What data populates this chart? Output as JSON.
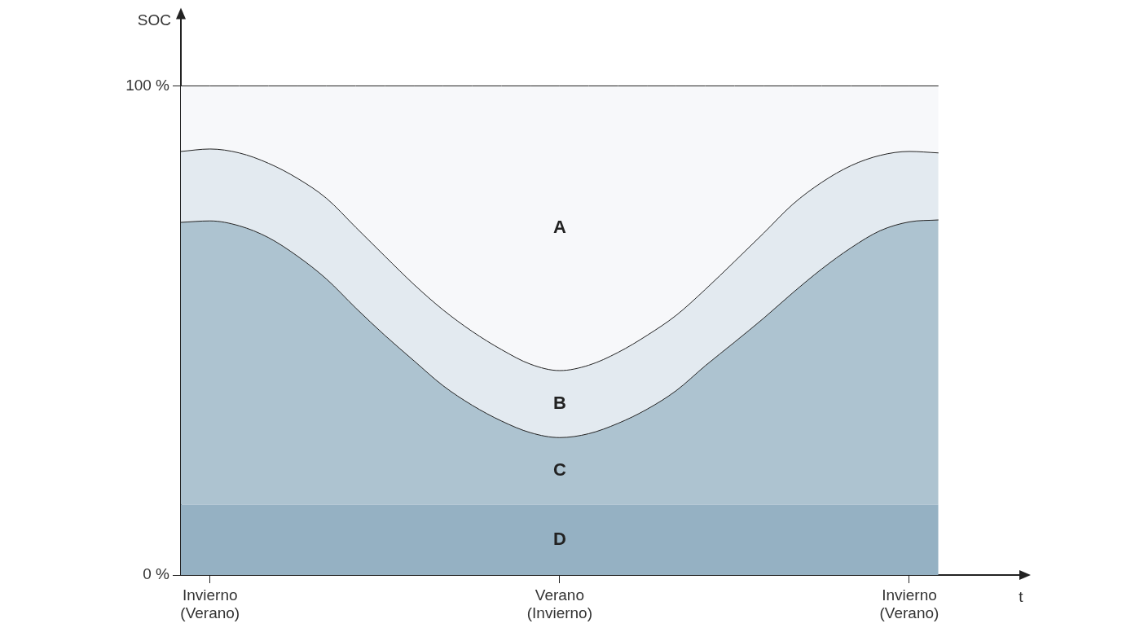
{
  "chart_data": {
    "type": "area",
    "stacked": true,
    "xlabel": "t",
    "ylabel": "SOC",
    "categories": [
      null,
      "Invierno\n(Verano)",
      null,
      null,
      null,
      null,
      null,
      null,
      null,
      null,
      null,
      null,
      null,
      "Verano\n(Invierno)",
      null,
      null,
      null,
      null,
      null,
      null,
      null,
      null,
      null,
      null,
      null,
      "Invierno\n(Verano)",
      null,
      null,
      null,
      null
    ],
    "ylim": [
      0,
      115
    ],
    "yticks": [
      {
        "value": 0,
        "label": "0 %"
      },
      {
        "value": 100,
        "label": "100 %"
      }
    ],
    "grid": false,
    "legend": false,
    "series": [
      {
        "color": "#95b1c3",
        "values": [
          14.4,
          14.4,
          14.4,
          14.4,
          14.4,
          14.4,
          14.4,
          14.4,
          14.4,
          14.4,
          14.4,
          14.4,
          14.4,
          14.4,
          14.4,
          14.4,
          14.4,
          14.4,
          14.4,
          14.4,
          14.4,
          14.4,
          14.4,
          14.4,
          14.4,
          14.4,
          14.4,
          null,
          null,
          null
        ]
      },
      {
        "color": "#adc3d0",
        "values": [
          57.7,
          58.0,
          57.0,
          54.6,
          50.8,
          46.1,
          40.2,
          34.6,
          29.4,
          24.3,
          20.3,
          17.1,
          14.7,
          13.7,
          14.5,
          16.6,
          19.5,
          23.3,
          28.4,
          33.2,
          38.1,
          43.3,
          48.2,
          52.5,
          56.0,
          57.8,
          58.2,
          null,
          null,
          null
        ]
      },
      {
        "color": "#e3eaf0",
        "values": [
          14.5,
          14.7,
          14.9,
          15.2,
          15.9,
          16.5,
          16.5,
          16.2,
          15.6,
          15.5,
          15.1,
          14.6,
          14.0,
          13.7,
          14.0,
          14.5,
          15.1,
          15.4,
          15.6,
          16.5,
          17.4,
          18.1,
          17.7,
          16.8,
          15.4,
          14.4,
          13.7,
          null,
          null,
          null
        ]
      },
      {
        "color": "#f7f8fa",
        "values": [
          13.4,
          12.9,
          13.7,
          15.8,
          18.9,
          23.0,
          28.9,
          34.8,
          40.6,
          45.8,
          50.2,
          53.9,
          56.9,
          58.2,
          57.1,
          54.5,
          51.0,
          46.9,
          41.6,
          35.9,
          30.1,
          24.2,
          19.7,
          16.3,
          14.2,
          13.4,
          13.7,
          null,
          null,
          null
        ]
      }
    ],
    "annotations": [
      "A",
      "B",
      "C",
      "D"
    ]
  }
}
